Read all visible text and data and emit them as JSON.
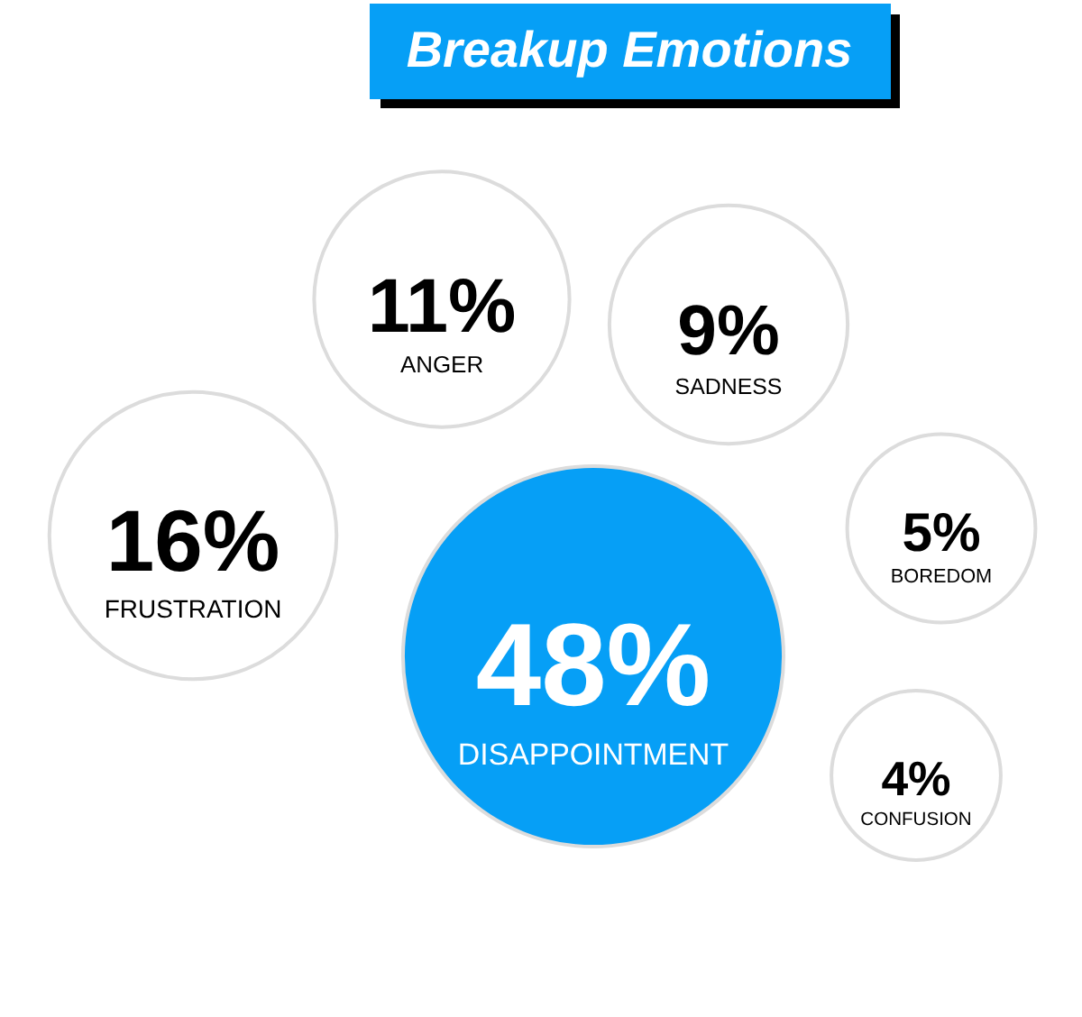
{
  "chart_data": {
    "type": "other",
    "title": "Breakup Emotions",
    "categories": [
      "DISAPPOINTMENT",
      "FRUSTRATION",
      "ANGER",
      "SADNESS",
      "BOREDOM",
      "CONFUSION"
    ],
    "values": [
      48,
      16,
      11,
      9,
      5,
      4
    ],
    "value_labels": [
      "48%",
      "16%",
      "11%",
      "9%",
      "5%",
      "4%"
    ],
    "colors": [
      "#069ff6",
      "#ffffff",
      "#ffffff",
      "#ffffff",
      "#ffffff",
      "#ffffff"
    ]
  }
}
